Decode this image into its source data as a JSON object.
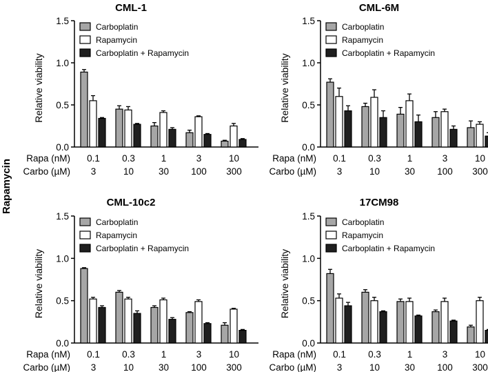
{
  "side_label": "Rapamycin",
  "colors": {
    "carboplatin": "#a6a6a6",
    "rapamycin": "#ffffff",
    "combination": "#1f1f1f",
    "axis": "#000000"
  },
  "row_labels": {
    "rapa": "Rapa (nM)",
    "carbo": "Carbo (µM)"
  },
  "rapa_doses": [
    "0.1",
    "0.3",
    "1",
    "3",
    "10"
  ],
  "carbo_doses": [
    "3",
    "10",
    "30",
    "100",
    "300"
  ],
  "chart_data": [
    {
      "type": "bar",
      "title": "CML-1",
      "ylabel": "Relative viability",
      "ylim": [
        0,
        1.5
      ],
      "yticks": [
        "0.0",
        "0.5",
        "1.0",
        "1.5"
      ],
      "legend": "top-left",
      "series": [
        {
          "name": "Carboplatin",
          "values": [
            0.89,
            0.45,
            0.25,
            0.17,
            0.07
          ],
          "err": [
            0.03,
            0.04,
            0.04,
            0.03,
            0.01
          ]
        },
        {
          "name": "Rapamycin",
          "values": [
            0.55,
            0.44,
            0.41,
            0.36,
            0.25
          ],
          "err": [
            0.06,
            0.04,
            0.02,
            0.01,
            0.03
          ]
        },
        {
          "name": "Carboplatin + Rapamycin",
          "values": [
            0.34,
            0.27,
            0.21,
            0.15,
            0.09
          ],
          "err": [
            0.01,
            0.01,
            0.02,
            0.01,
            0.01
          ]
        }
      ]
    },
    {
      "type": "bar",
      "title": "CML-6M",
      "ylabel": "Relative viability",
      "ylim": [
        0,
        1.5
      ],
      "yticks": [
        "0.0",
        "0.5",
        "1.0",
        "1.5"
      ],
      "legend": "top-left",
      "series": [
        {
          "name": "Carboplatin",
          "values": [
            0.77,
            0.48,
            0.39,
            0.35,
            0.23
          ],
          "err": [
            0.04,
            0.04,
            0.08,
            0.07,
            0.08
          ]
        },
        {
          "name": "Rapamycin",
          "values": [
            0.6,
            0.59,
            0.55,
            0.42,
            0.27
          ],
          "err": [
            0.1,
            0.09,
            0.08,
            0.03,
            0.03
          ]
        },
        {
          "name": "Carboplatin + Rapamycin",
          "values": [
            0.43,
            0.35,
            0.3,
            0.21,
            0.13
          ],
          "err": [
            0.06,
            0.08,
            0.08,
            0.04,
            0.04
          ]
        }
      ]
    },
    {
      "type": "bar",
      "title": "CML-10c2",
      "ylabel": "Relative viability",
      "ylim": [
        0,
        1.5
      ],
      "yticks": [
        "0.0",
        "0.5",
        "1.0",
        "1.5"
      ],
      "legend": "top-left",
      "series": [
        {
          "name": "Carboplatin",
          "values": [
            0.88,
            0.6,
            0.42,
            0.36,
            0.21
          ],
          "err": [
            0.01,
            0.02,
            0.02,
            0.01,
            0.03
          ]
        },
        {
          "name": "Rapamycin",
          "values": [
            0.52,
            0.52,
            0.51,
            0.49,
            0.4
          ],
          "err": [
            0.02,
            0.02,
            0.02,
            0.02,
            0.01
          ]
        },
        {
          "name": "Carboplatin + Rapamycin",
          "values": [
            0.42,
            0.35,
            0.28,
            0.23,
            0.15
          ],
          "err": [
            0.02,
            0.03,
            0.02,
            0.01,
            0.01
          ]
        }
      ]
    },
    {
      "type": "bar",
      "title": "17CM98",
      "ylabel": "Relative viability",
      "ylim": [
        0,
        1.5
      ],
      "yticks": [
        "0.0",
        "0.5",
        "1.0",
        "1.5"
      ],
      "legend": "top-left",
      "series": [
        {
          "name": "Carboplatin",
          "values": [
            0.82,
            0.6,
            0.49,
            0.37,
            0.19
          ],
          "err": [
            0.05,
            0.03,
            0.03,
            0.02,
            0.02
          ]
        },
        {
          "name": "Rapamycin",
          "values": [
            0.53,
            0.5,
            0.49,
            0.49,
            0.5
          ],
          "err": [
            0.05,
            0.04,
            0.04,
            0.04,
            0.04
          ]
        },
        {
          "name": "Carboplatin + Rapamycin",
          "values": [
            0.44,
            0.37,
            0.32,
            0.26,
            0.15
          ],
          "err": [
            0.04,
            0.01,
            0.01,
            0.01,
            0.01
          ]
        }
      ]
    }
  ]
}
